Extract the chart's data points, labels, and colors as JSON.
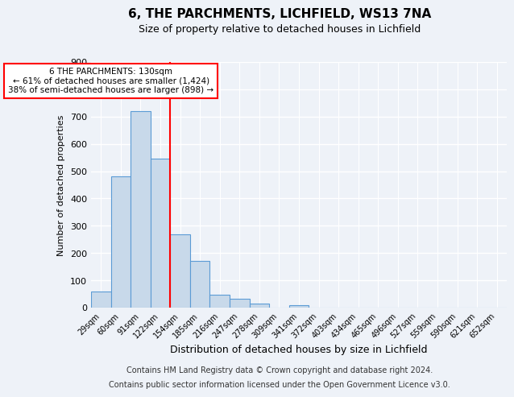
{
  "title1": "6, THE PARCHMENTS, LICHFIELD, WS13 7NA",
  "title2": "Size of property relative to detached houses in Lichfield",
  "xlabel": "Distribution of detached houses by size in Lichfield",
  "ylabel": "Number of detached properties",
  "bar_labels": [
    "29sqm",
    "60sqm",
    "91sqm",
    "122sqm",
    "154sqm",
    "185sqm",
    "216sqm",
    "247sqm",
    "278sqm",
    "309sqm",
    "341sqm",
    "372sqm",
    "403sqm",
    "434sqm",
    "465sqm",
    "496sqm",
    "527sqm",
    "559sqm",
    "590sqm",
    "621sqm",
    "652sqm"
  ],
  "bar_values": [
    60,
    480,
    720,
    545,
    270,
    172,
    48,
    33,
    15,
    0,
    8,
    0,
    0,
    0,
    0,
    0,
    0,
    0,
    0,
    0,
    0
  ],
  "bar_color": "#c8d9ea",
  "bar_edge_color": "#5b9bd5",
  "ylim": [
    0,
    900
  ],
  "yticks": [
    0,
    100,
    200,
    300,
    400,
    500,
    600,
    700,
    800,
    900
  ],
  "vline_color": "red",
  "annotation_title": "6 THE PARCHMENTS: 130sqm",
  "annotation_line1": "← 61% of detached houses are smaller (1,424)",
  "annotation_line2": "38% of semi-detached houses are larger (898) →",
  "annotation_box_color": "white",
  "annotation_box_edge": "red",
  "footer1": "Contains HM Land Registry data © Crown copyright and database right 2024.",
  "footer2": "Contains public sector information licensed under the Open Government Licence v3.0.",
  "bg_color": "#eef2f8",
  "grid_color": "white",
  "title1_fontsize": 11,
  "title2_fontsize": 9,
  "footnote_fontsize": 7
}
